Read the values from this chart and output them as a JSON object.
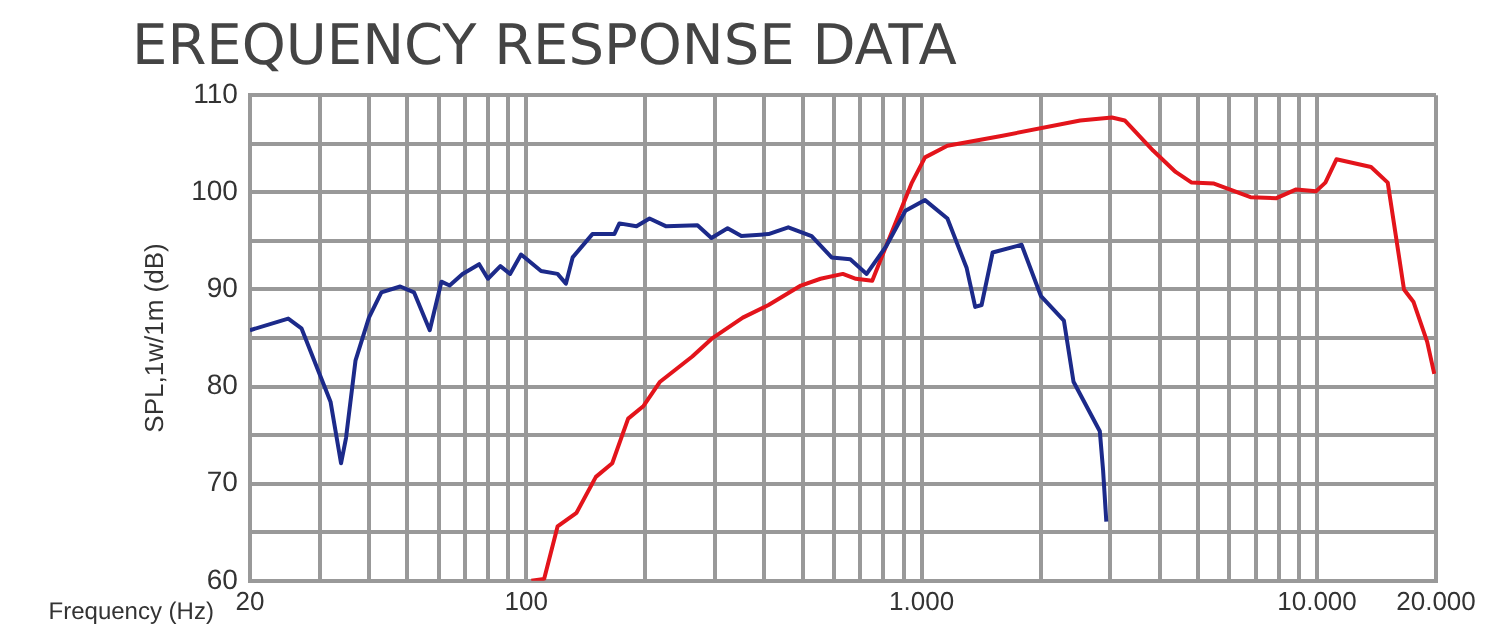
{
  "chart_data": {
    "type": "line",
    "title": "EREQUENCY RESPONSE DATA",
    "xlabel": "Frequency (Hz)",
    "ylabel": "SPL,1w/1m (dB)",
    "log": "x",
    "grid": true,
    "legend": false,
    "marker": "none",
    "line_style": "solid",
    "xlim": [
      20,
      20000
    ],
    "ylim": [
      60,
      110
    ],
    "xticks": [
      20,
      {
        "value": 30,
        "label": null
      },
      {
        "value": 40,
        "label": null
      },
      {
        "value": 50,
        "label": null
      },
      {
        "value": 60,
        "label": null
      },
      {
        "value": 70,
        "label": null
      },
      {
        "value": 80,
        "label": null
      },
      {
        "value": 90,
        "label": null
      },
      100,
      {
        "value": 200,
        "label": null
      },
      {
        "value": 300,
        "label": null
      },
      {
        "value": 400,
        "label": null
      },
      {
        "value": 500,
        "label": null
      },
      {
        "value": 600,
        "label": null
      },
      {
        "value": 700,
        "label": null
      },
      {
        "value": 800,
        "label": null
      },
      {
        "value": 900,
        "label": null
      },
      {
        "value": 1000,
        "label": "1.000"
      },
      {
        "value": 2000,
        "label": null
      },
      {
        "value": 3000,
        "label": null
      },
      {
        "value": 4000,
        "label": null
      },
      {
        "value": 5000,
        "label": null
      },
      {
        "value": 6000,
        "label": null
      },
      {
        "value": 7000,
        "label": null
      },
      {
        "value": 8000,
        "label": null
      },
      {
        "value": 9000,
        "label": null
      },
      {
        "value": 10000,
        "label": "10.000"
      },
      {
        "value": 20000,
        "label": "20.000"
      }
    ],
    "yticks": [
      60,
      {
        "value": 65,
        "label": null
      },
      70,
      {
        "value": 75,
        "label": null
      },
      80,
      {
        "value": 85,
        "label": null
      },
      90,
      {
        "value": 95,
        "label": null
      },
      100,
      {
        "value": 105,
        "label": null
      },
      110
    ],
    "series": [
      {
        "color": "#1c2a8a",
        "x": [
          20,
          25,
          27,
          30,
          32,
          34,
          35,
          37,
          40,
          43,
          48,
          52,
          57,
          61,
          64,
          69,
          76,
          80,
          86,
          91,
          97,
          109,
          120,
          126,
          131,
          147,
          167,
          172,
          190,
          205,
          226,
          271,
          294,
          323,
          350,
          410,
          460,
          527,
          592,
          660,
          726,
          812,
          910,
          1020,
          1162,
          1300,
          1366,
          1418,
          1512,
          1790,
          2004,
          2290,
          2422,
          2823,
          2877,
          2932
        ],
        "values": [
          85.8,
          87,
          86,
          81.3,
          78.4,
          72.1,
          74.7,
          82.7,
          87.1,
          89.7,
          90.3,
          89.7,
          85.8,
          90.8,
          90.4,
          91.6,
          92.6,
          91.1,
          92.4,
          91.6,
          93.6,
          91.9,
          91.6,
          90.6,
          93.3,
          95.7,
          95.7,
          96.8,
          96.5,
          97.3,
          96.5,
          96.6,
          95.3,
          96.3,
          95.5,
          95.7,
          96.4,
          95.5,
          93.3,
          93.1,
          91.6,
          94.4,
          98.1,
          99.2,
          97.3,
          92.2,
          88.2,
          88.4,
          93.8,
          94.6,
          89.3,
          86.8,
          80.5,
          75.4,
          71.4,
          66.1
        ]
      },
      {
        "color": "#e3141b",
        "x": [
          103,
          111,
          120,
          134,
          150,
          165,
          181,
          198,
          218,
          263,
          294,
          353,
          410,
          495,
          555,
          632,
          682,
          750,
          812,
          945,
          1020,
          1162,
          1590,
          2518,
          3030,
          3264,
          3850,
          4390,
          4820,
          5490,
          6790,
          7900,
          8860,
          9940,
          10500,
          11200,
          13700,
          15100,
          16600,
          17550,
          19000,
          19800
        ],
        "values": [
          60,
          60.2,
          65.6,
          67,
          70.7,
          72.1,
          76.7,
          78,
          80.5,
          83.1,
          84.9,
          87.1,
          88.4,
          90.4,
          91.1,
          91.6,
          91.1,
          90.9,
          94.4,
          101,
          103.6,
          104.8,
          105.8,
          107.4,
          107.7,
          107.4,
          104.3,
          102.1,
          101,
          100.9,
          99.5,
          99.4,
          100.3,
          100.1,
          101,
          103.4,
          102.6,
          101,
          90,
          88.7,
          84.6,
          81.3
        ]
      }
    ]
  }
}
